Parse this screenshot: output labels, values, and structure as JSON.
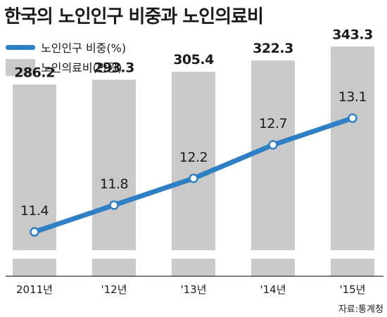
{
  "colors": {
    "bar": "#c9c9c9",
    "line": "#2f7fc4",
    "marker_fill": "#ffffff",
    "text": "#1a1a1a"
  },
  "chart_data": {
    "type": "bar",
    "title": "한국의 노인인구 비중과 노인의료비",
    "categories": [
      "2011년",
      "'12년",
      "'13년",
      "'14년",
      "'15년"
    ],
    "series": [
      {
        "name": "노인의료비(만원)",
        "type": "bar",
        "values": [
          286.2,
          293.3,
          305.4,
          322.3,
          343.3
        ]
      },
      {
        "name": "노인인구 비중(%)",
        "type": "line",
        "values": [
          11.4,
          11.8,
          12.2,
          12.7,
          13.1
        ]
      }
    ],
    "bar_value_labels": [
      "286.2",
      "293.3",
      "305.4",
      "322.3",
      "343.3"
    ],
    "line_value_labels": [
      "11.4",
      "11.8",
      "12.2",
      "12.7",
      "13.1"
    ],
    "axis_break": true,
    "grid": false,
    "legend_position": "top-left",
    "source": "자료:통계청"
  }
}
